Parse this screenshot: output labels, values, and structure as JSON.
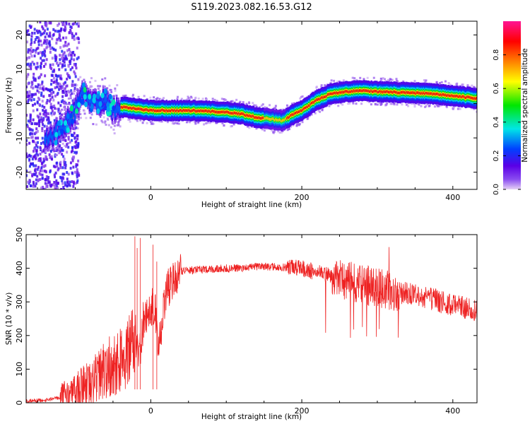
{
  "title": "S119.2023.082.16.53.G12",
  "chart_data": [
    {
      "type": "heatmap",
      "title": "S119.2023.082.16.53.G12",
      "xlabel": "Height of straight line (km)",
      "ylabel": "Frequency (Hz)",
      "xlim": [
        -165,
        432
      ],
      "ylim": [
        -25,
        24
      ],
      "x_ticks": [
        "0",
        "200",
        "400"
      ],
      "x_tick_values": [
        0,
        200,
        400
      ],
      "y_ticks": [
        "20",
        "10",
        "0",
        "-10",
        "-20"
      ],
      "y_tick_values": [
        20,
        10,
        0,
        -10,
        -20
      ],
      "colorbar": {
        "label": "Normalized spectral amplitude",
        "ticks": [
          "0.0",
          "0.2",
          "0.4",
          "0.6",
          "0.8"
        ],
        "tick_values": [
          0.0,
          0.2,
          0.4,
          0.6,
          0.8
        ],
        "range": [
          0,
          1
        ],
        "colormap": [
          "#e6d2f5",
          "#5a00e6",
          "#0040ff",
          "#00e6e6",
          "#00e600",
          "#ffff00",
          "#ff8000",
          "#ff0000",
          "#ff1493"
        ]
      },
      "ridge": {
        "x": [
          -160,
          -140,
          -120,
          -110,
          -100,
          -90,
          -80,
          -70,
          -60,
          -50,
          -40,
          -20,
          0,
          50,
          80,
          100,
          120,
          140,
          160,
          175,
          190,
          200,
          220,
          240,
          260,
          280,
          300,
          330,
          360,
          390,
          410,
          432
        ],
        "y": [
          -15,
          -10,
          -8,
          -5,
          -2,
          3,
          1,
          0,
          1,
          -2,
          -1,
          -1.5,
          -2,
          -2,
          -2.3,
          -2.5,
          -3,
          -4,
          -4.5,
          -5,
          -3,
          -2,
          1,
          3,
          3.5,
          3.8,
          3.5,
          3.2,
          3,
          2.5,
          2,
          1.5
        ]
      }
    },
    {
      "type": "line",
      "xlabel": "Height of straight line (km)",
      "ylabel": "SNR (10 * v/v)",
      "xlim": [
        -165,
        432
      ],
      "ylim": [
        0,
        500
      ],
      "x_ticks": [
        "0",
        "200",
        "400"
      ],
      "x_tick_values": [
        0,
        200,
        400
      ],
      "y_ticks": [
        "500",
        "400",
        "300",
        "200",
        "100",
        "0"
      ],
      "y_tick_values": [
        500,
        400,
        300,
        200,
        100,
        0
      ],
      "color": "#ee2222",
      "x": [
        -165,
        -140,
        -120,
        -100,
        -80,
        -60,
        -50,
        -40,
        -30,
        -20,
        -15,
        -10,
        0,
        5,
        10,
        15,
        20,
        30,
        40,
        60,
        100,
        150,
        200,
        250,
        300,
        350,
        400,
        432
      ],
      "y": [
        5,
        8,
        15,
        35,
        55,
        100,
        110,
        130,
        150,
        170,
        130,
        240,
        270,
        300,
        150,
        240,
        330,
        370,
        392,
        395,
        400,
        405,
        400,
        370,
        340,
        320,
        290,
        275
      ]
    }
  ]
}
